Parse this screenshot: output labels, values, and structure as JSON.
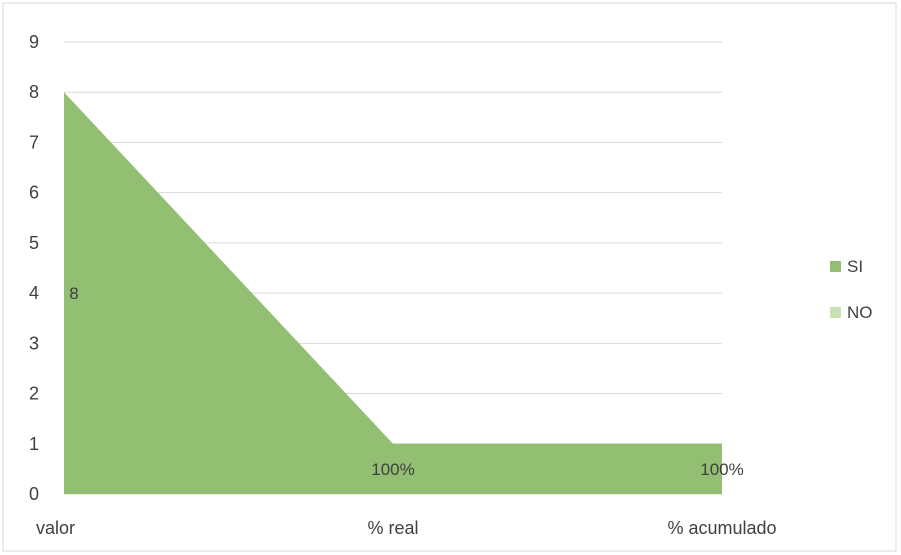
{
  "chart_data": {
    "type": "area",
    "categories": [
      "valor",
      "% real",
      "% acumulado"
    ],
    "series": [
      {
        "name": "SI",
        "values": [
          8,
          1,
          1
        ],
        "data_labels": [
          "8",
          "100%",
          "100%"
        ],
        "color": "#93bf72"
      },
      {
        "name": "NO",
        "values": [
          0,
          0,
          0
        ],
        "color": "#c8e2b6"
      }
    ],
    "stacked": true,
    "ylim": [
      0,
      9
    ],
    "yticks": [
      0,
      1,
      2,
      3,
      4,
      5,
      6,
      7,
      8,
      9
    ],
    "grid": true,
    "legend_position": "right",
    "title": "",
    "xlabel": "",
    "ylabel": ""
  }
}
